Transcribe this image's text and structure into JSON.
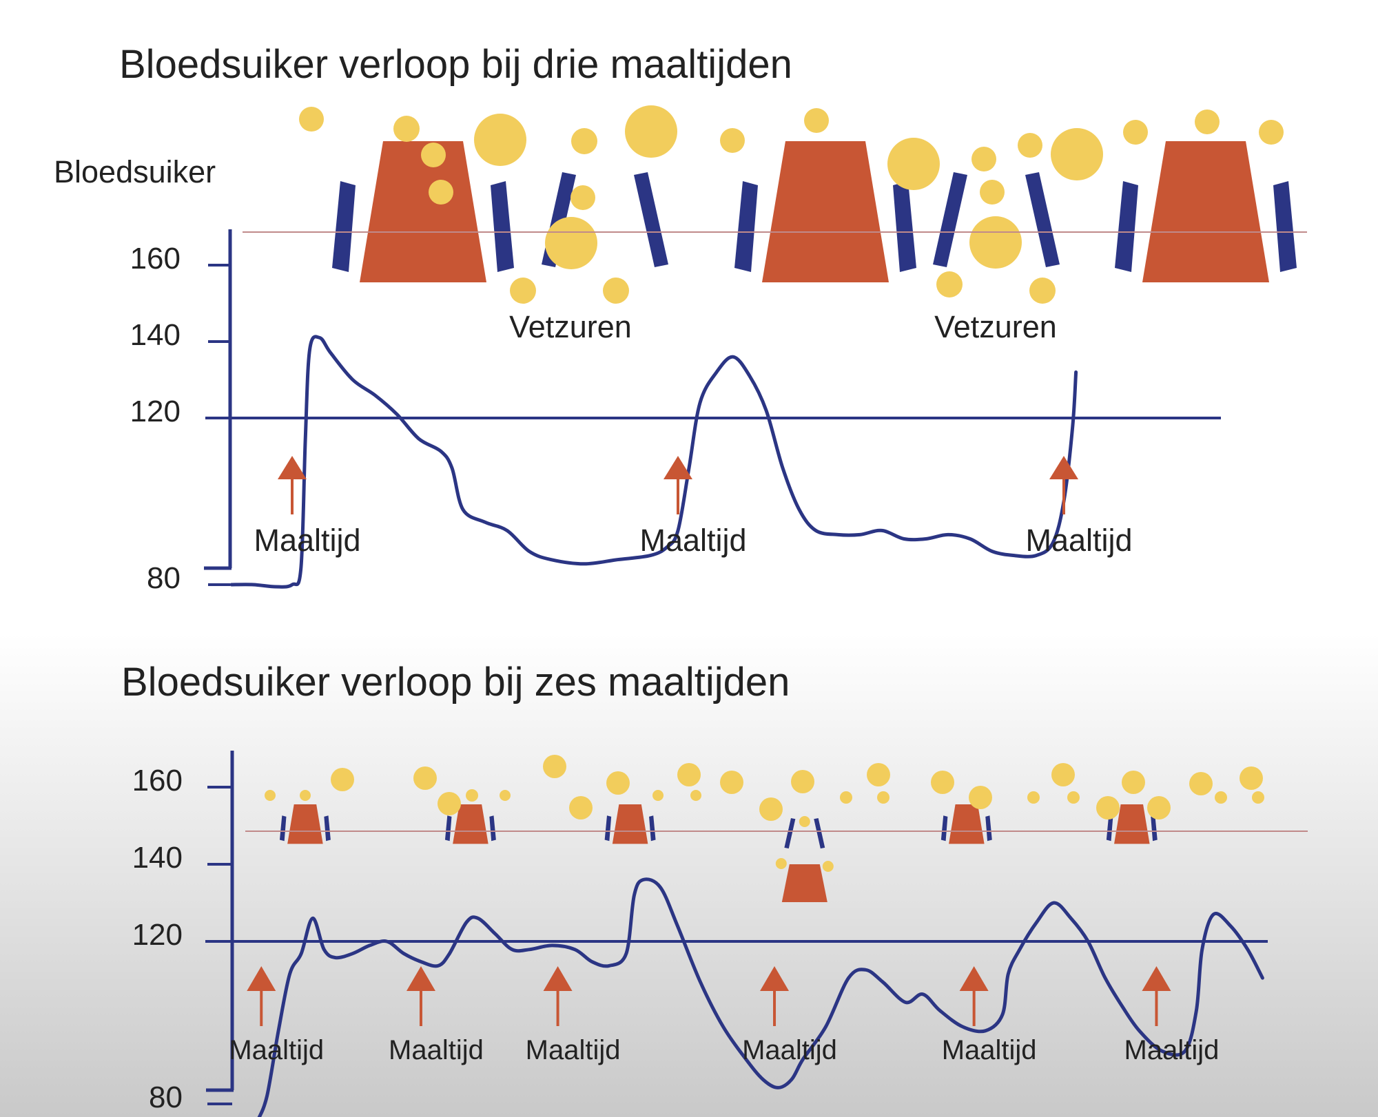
{
  "colors": {
    "curve": "#2b3584",
    "axis": "#2b3584",
    "cell": "#c85634",
    "cell_edge": "#2b3584",
    "droplet": "#f2cd5c",
    "arrow": "#c85634",
    "threshold_thin": "#c08a8a",
    "text": "#222222"
  },
  "chart_data": [
    {
      "type": "line",
      "title": "Bloedsuiker verloop bij drie maaltijden",
      "ylabel": "Bloedsuiker",
      "yticks": [
        160,
        140,
        120,
        80
      ],
      "reference_line": 120,
      "series": [
        {
          "values": [
            [
              0,
              80
            ],
            [
              2,
              80
            ],
            [
              4,
              79.5
            ],
            [
              5.5,
              80
            ],
            [
              6.3,
              84
            ],
            [
              6.7,
              115
            ],
            [
              7.1,
              138
            ],
            [
              8,
              141
            ],
            [
              9,
              137
            ],
            [
              11,
              130
            ],
            [
              13,
              126
            ],
            [
              15,
              121
            ],
            [
              17,
              115
            ],
            [
              19,
              112
            ],
            [
              20,
              108
            ],
            [
              21,
              98
            ],
            [
              23,
              95
            ],
            [
              25,
              93
            ],
            [
              27,
              88
            ],
            [
              29,
              86
            ],
            [
              32,
              85
            ],
            [
              35,
              86
            ],
            [
              38,
              87
            ],
            [
              39.5,
              89
            ],
            [
              40.5,
              93
            ],
            [
              41.5,
              108
            ],
            [
              42.5,
              124
            ],
            [
              44,
              132
            ],
            [
              45.5,
              136
            ],
            [
              47,
              131
            ],
            [
              48.5,
              122
            ],
            [
              50,
              108
            ],
            [
              51.5,
              98
            ],
            [
              53,
              93
            ],
            [
              55,
              92
            ],
            [
              57,
              92
            ],
            [
              59,
              93
            ],
            [
              61,
              91
            ],
            [
              63,
              91
            ],
            [
              65,
              92
            ],
            [
              67,
              91
            ],
            [
              69,
              88
            ],
            [
              71,
              87
            ],
            [
              73,
              87
            ],
            [
              74.5,
              90
            ],
            [
              75.5,
              100
            ],
            [
              76.3,
              118
            ],
            [
              76.6,
              132
            ]
          ]
        }
      ],
      "annotations": [
        {
          "label": "Maaltijd",
          "x": 5.5
        },
        {
          "label": "Maaltijd",
          "x": 40.5
        },
        {
          "label": "Maaltijd",
          "x": 75.5
        }
      ],
      "fat_labels": [
        "Vetzuren",
        "Vetzuren"
      ],
      "cells": [
        {
          "kind": "closed",
          "x": 8
        },
        {
          "kind": "open",
          "x": 24.5
        },
        {
          "kind": "closed",
          "x": 44.5
        },
        {
          "kind": "open",
          "x": 60
        },
        {
          "kind": "closed",
          "x": 79
        }
      ]
    },
    {
      "type": "line",
      "title": "Bloedsuiker verloop bij zes maaltijden",
      "yticks": [
        160,
        140,
        120,
        80
      ],
      "reference_line": 120,
      "series": [
        {
          "values": [
            [
              0.2,
              76
            ],
            [
              1,
              82
            ],
            [
              2,
              98
            ],
            [
              3,
              112
            ],
            [
              4,
              117
            ],
            [
              5,
              126
            ],
            [
              6,
              118
            ],
            [
              7,
              116
            ],
            [
              8.5,
              117
            ],
            [
              10,
              119
            ],
            [
              11.5,
              120
            ],
            [
              13,
              117
            ],
            [
              14.5,
              115
            ],
            [
              16,
              114
            ],
            [
              17,
              117
            ],
            [
              18.5,
              125
            ],
            [
              19.5,
              126
            ],
            [
              21,
              122
            ],
            [
              22.5,
              118
            ],
            [
              24,
              118
            ],
            [
              26,
              119
            ],
            [
              28,
              118
            ],
            [
              29.5,
              115
            ],
            [
              31,
              114
            ],
            [
              32.5,
              117
            ],
            [
              33.2,
              132
            ],
            [
              34,
              136
            ],
            [
              35.5,
              134
            ],
            [
              37,
              124
            ],
            [
              39,
              110
            ],
            [
              41,
              99
            ],
            [
              43,
              91
            ],
            [
              44.5,
              86
            ],
            [
              45.8,
              84
            ],
            [
              47,
              86
            ],
            [
              48,
              91
            ],
            [
              50,
              99
            ],
            [
              52,
              111
            ],
            [
              53.5,
              113
            ],
            [
              55,
              110
            ],
            [
              57,
              105
            ],
            [
              58.5,
              107
            ],
            [
              60,
              103
            ],
            [
              62,
              99
            ],
            [
              64,
              98
            ],
            [
              65.5,
              102
            ],
            [
              66,
              112
            ],
            [
              67,
              118
            ],
            [
              68.5,
              125
            ],
            [
              70,
              130
            ],
            [
              71.5,
              126
            ],
            [
              73,
              120
            ],
            [
              74.5,
              111
            ],
            [
              76,
              104
            ],
            [
              77.5,
              98
            ],
            [
              79.5,
              93
            ],
            [
              81.5,
              93
            ],
            [
              82.5,
              103
            ],
            [
              83,
              118
            ],
            [
              84,
              127
            ],
            [
              85.5,
              124
            ],
            [
              87,
              118
            ],
            [
              88.3,
              111
            ]
          ]
        }
      ],
      "annotations": [
        {
          "label": "Maaltijd",
          "x": 0.5
        },
        {
          "label": "Maaltijd",
          "x": 14.5
        },
        {
          "label": "Maaltijd",
          "x": 26.5
        },
        {
          "label": "Maaltijd",
          "x": 45.5
        },
        {
          "label": "Maaltijd",
          "x": 63
        },
        {
          "label": "Maaltijd",
          "x": 79
        }
      ],
      "cells": [
        {
          "kind": "closed",
          "x": 3.5
        },
        {
          "kind": "closed",
          "x": 18
        },
        {
          "kind": "closed",
          "x": 32
        },
        {
          "kind": "open",
          "x": 47.3
        },
        {
          "kind": "closed",
          "x": 61.5
        },
        {
          "kind": "closed",
          "x": 76
        }
      ]
    }
  ]
}
